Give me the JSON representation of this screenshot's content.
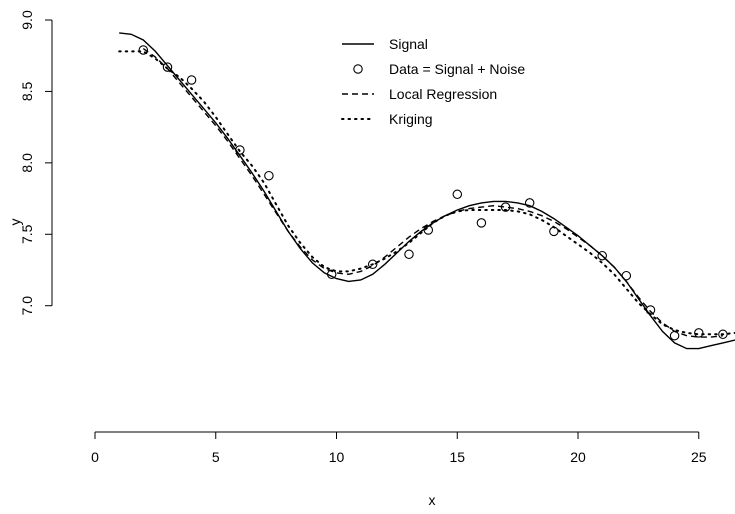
{
  "chart_data": {
    "type": "scatter",
    "xlabel": "x",
    "ylabel": "y",
    "xlim": [
      0,
      26.5
    ],
    "ylim": [
      6.62,
      9.0
    ],
    "x_ticks": [
      0,
      5,
      10,
      15,
      20,
      25
    ],
    "x_tick_labels": [
      "0",
      "5",
      "10",
      "15",
      "20",
      "25"
    ],
    "y_ticks": [
      7.0,
      7.5,
      8.0,
      8.5,
      9.0
    ],
    "y_tick_labels": [
      "7.0",
      "7.5",
      "8.0",
      "8.5",
      "9.0"
    ],
    "grid": false,
    "legend_position": "top-center",
    "series": [
      {
        "name": "Signal",
        "style": "line-solid",
        "x": [
          1.0,
          1.5,
          2.0,
          2.5,
          3.0,
          3.5,
          4.0,
          4.5,
          5.0,
          5.5,
          6.0,
          6.5,
          7.0,
          7.5,
          8.0,
          8.5,
          9.0,
          9.5,
          10.0,
          10.5,
          11.0,
          11.5,
          12.0,
          12.5,
          13.0,
          13.5,
          14.0,
          14.5,
          15.0,
          15.5,
          16.0,
          16.5,
          17.0,
          17.5,
          18.0,
          18.5,
          19.0,
          19.5,
          20.0,
          20.5,
          21.0,
          21.5,
          22.0,
          22.5,
          23.0,
          23.5,
          24.0,
          24.5,
          25.0,
          25.5,
          26.0,
          26.5
        ],
        "y": [
          8.91,
          8.9,
          8.86,
          8.78,
          8.68,
          8.58,
          8.48,
          8.38,
          8.28,
          8.17,
          8.05,
          7.93,
          7.8,
          7.66,
          7.52,
          7.4,
          7.3,
          7.23,
          7.19,
          7.17,
          7.18,
          7.22,
          7.29,
          7.37,
          7.45,
          7.52,
          7.58,
          7.63,
          7.67,
          7.7,
          7.72,
          7.73,
          7.73,
          7.72,
          7.7,
          7.66,
          7.61,
          7.55,
          7.49,
          7.42,
          7.35,
          7.27,
          7.17,
          7.05,
          6.93,
          6.82,
          6.74,
          6.7,
          6.7,
          6.72,
          6.74,
          6.76
        ]
      },
      {
        "name": "Data = Signal + Noise",
        "style": "points-open-circle",
        "x": [
          2,
          3,
          4,
          6,
          7.2,
          9.8,
          11.5,
          13,
          13.8,
          15,
          16,
          17,
          18,
          19,
          21,
          22,
          23,
          24,
          25,
          26
        ],
        "y": [
          8.79,
          8.67,
          8.58,
          8.09,
          7.91,
          7.22,
          7.29,
          7.36,
          7.53,
          7.78,
          7.58,
          7.69,
          7.72,
          7.52,
          7.35,
          7.21,
          6.97,
          6.79,
          6.81,
          6.8
        ]
      },
      {
        "name": "Local Regression",
        "style": "line-dashed",
        "x": [
          2.0,
          2.5,
          3.0,
          3.5,
          4.0,
          4.5,
          5.0,
          5.5,
          6.0,
          6.5,
          7.0,
          7.5,
          8.0,
          8.5,
          9.0,
          9.5,
          10.0,
          10.5,
          11.0,
          11.5,
          12.0,
          12.5,
          13.0,
          13.5,
          14.0,
          14.5,
          15.0,
          15.5,
          16.0,
          16.5,
          17.0,
          17.5,
          18.0,
          18.5,
          19.0,
          19.5,
          20.0,
          20.5,
          21.0,
          21.5,
          22.0,
          22.5,
          23.0,
          23.5,
          24.0,
          24.5,
          25.0,
          25.5,
          26.0
        ],
        "y": [
          8.8,
          8.74,
          8.66,
          8.56,
          8.46,
          8.36,
          8.26,
          8.15,
          8.03,
          7.91,
          7.78,
          7.65,
          7.52,
          7.41,
          7.32,
          7.26,
          7.23,
          7.22,
          7.24,
          7.28,
          7.34,
          7.41,
          7.48,
          7.54,
          7.59,
          7.63,
          7.66,
          7.68,
          7.69,
          7.7,
          7.69,
          7.68,
          7.66,
          7.63,
          7.59,
          7.54,
          7.48,
          7.42,
          7.35,
          7.27,
          7.17,
          7.06,
          6.96,
          6.88,
          6.82,
          6.79,
          6.78,
          6.78,
          6.79
        ]
      },
      {
        "name": "Kriging",
        "style": "line-dotted",
        "x": [
          1.0,
          1.5,
          2.0,
          2.5,
          3.0,
          3.5,
          4.0,
          4.5,
          5.0,
          5.5,
          6.0,
          6.5,
          7.0,
          7.5,
          8.0,
          8.5,
          9.0,
          9.5,
          10.0,
          10.5,
          11.0,
          11.5,
          12.0,
          12.5,
          13.0,
          13.5,
          14.0,
          14.5,
          15.0,
          15.5,
          16.0,
          16.5,
          17.0,
          17.5,
          18.0,
          18.5,
          19.0,
          19.5,
          20.0,
          20.5,
          21.0,
          21.5,
          22.0,
          22.5,
          23.0,
          23.5,
          24.0,
          24.5,
          25.0,
          25.5,
          26.0,
          26.5
        ],
        "y": [
          8.78,
          8.78,
          8.78,
          8.73,
          8.66,
          8.6,
          8.52,
          8.43,
          8.32,
          8.2,
          8.08,
          7.98,
          7.86,
          7.71,
          7.56,
          7.44,
          7.34,
          7.27,
          7.24,
          7.24,
          7.26,
          7.29,
          7.33,
          7.38,
          7.44,
          7.51,
          7.58,
          7.63,
          7.66,
          7.67,
          7.67,
          7.67,
          7.67,
          7.66,
          7.64,
          7.6,
          7.55,
          7.49,
          7.43,
          7.37,
          7.3,
          7.22,
          7.12,
          7.02,
          6.94,
          6.87,
          6.83,
          6.81,
          6.8,
          6.8,
          6.8,
          6.81
        ]
      }
    ]
  }
}
